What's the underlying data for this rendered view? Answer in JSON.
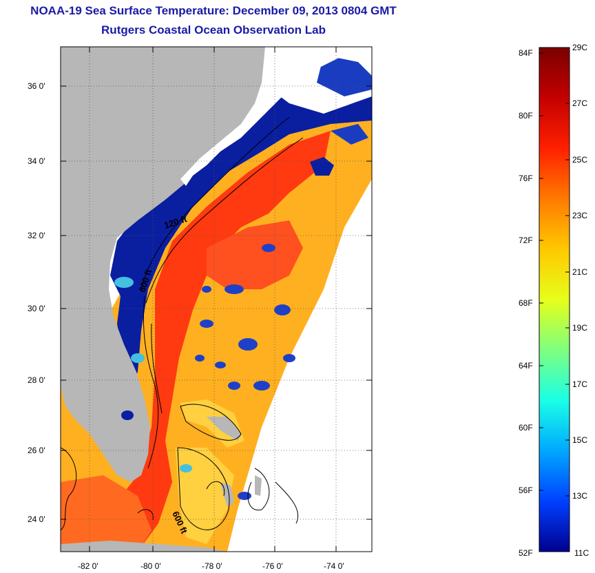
{
  "title": {
    "line1": "NOAA-19 Sea Surface Temperature:  December 09, 2013 0804 GMT",
    "line2": "Rutgers Coastal Ocean Observation Lab"
  },
  "map": {
    "lat_ticks": [
      "36 0'",
      "34 0'",
      "32 0'",
      "30 0'",
      "28 0'",
      "26 0'",
      "24 0'"
    ],
    "lon_ticks": [
      "-82 0'",
      "-80 0'",
      "-78 0'",
      "-76 0'",
      "-74 0'"
    ],
    "contour_labels": [
      "120 ft",
      "600 ft",
      "600 ft"
    ],
    "colors": {
      "land": "#b7b7b7",
      "cloud_mask": "#ffffff",
      "cold_shelf": "#0a1ea0",
      "warm_stream": "#ff3a10",
      "sargasso": "#ffb020",
      "banks": "#ffd040"
    }
  },
  "colorbar": {
    "fahrenheit": [
      "84F",
      "80F",
      "76F",
      "72F",
      "68F",
      "64F",
      "60F",
      "56F",
      "52F"
    ],
    "celsius": [
      "29C",
      "27C",
      "25C",
      "23C",
      "21C",
      "19C",
      "17C",
      "15C",
      "13C",
      "11C"
    ],
    "gradient": [
      "#7a0000",
      "#c40000",
      "#ff2000",
      "#ff7a00",
      "#ffc800",
      "#e6ff1a",
      "#7fff7f",
      "#1affe6",
      "#00a8ff",
      "#0040ff",
      "#00008f"
    ]
  }
}
